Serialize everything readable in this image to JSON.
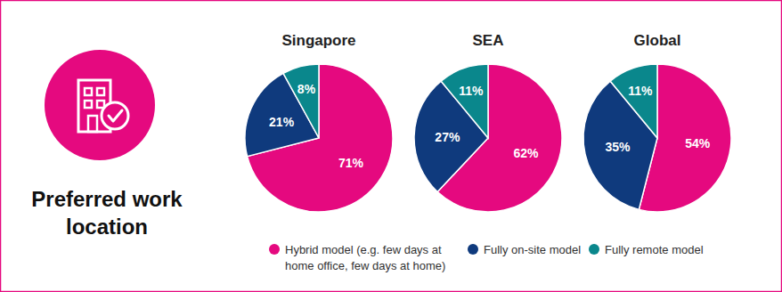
{
  "title": "Preferred work location",
  "chart_data": [
    {
      "type": "pie",
      "title": "Singapore",
      "categories": [
        "Hybrid model (e.g. few days at home office, few days at home)",
        "Fully on-site model",
        "Fully remote model"
      ],
      "values": [
        71,
        21,
        8
      ],
      "value_labels": [
        "71%",
        "21%",
        "8%"
      ],
      "colors": [
        "#e5097f",
        "#0f3a7d",
        "#0a878c"
      ],
      "data_labels": true
    },
    {
      "type": "pie",
      "title": "SEA",
      "categories": [
        "Hybrid model (e.g. few days at home office, few days at home)",
        "Fully on-site model",
        "Fully remote model"
      ],
      "values": [
        62,
        27,
        11
      ],
      "value_labels": [
        "62%",
        "27%",
        "11%"
      ],
      "colors": [
        "#e5097f",
        "#0f3a7d",
        "#0a878c"
      ],
      "data_labels": true
    },
    {
      "type": "pie",
      "title": "Global",
      "categories": [
        "Hybrid model (e.g. few days at home office, few days at home)",
        "Fully on-site model",
        "Fully remote model"
      ],
      "values": [
        54,
        35,
        11
      ],
      "value_labels": [
        "54%",
        "35%",
        "11%"
      ],
      "colors": [
        "#e5097f",
        "#0f3a7d",
        "#0a878c"
      ],
      "data_labels": true
    }
  ]
}
